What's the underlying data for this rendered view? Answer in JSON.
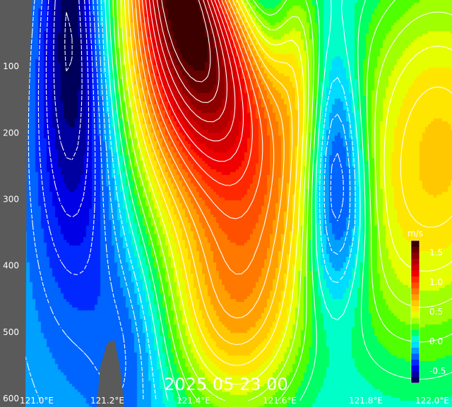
{
  "chart_data": {
    "type": "heatmap",
    "title": "",
    "timestamp": "2025 05 23 00",
    "xlabel": "",
    "ylabel": "",
    "unit": "m/s",
    "x_range": [
      121.0,
      122.0
    ],
    "y_range": [
      0,
      600
    ],
    "y_inverted": true,
    "x_tick_values": [
      121.0,
      121.2,
      121.4,
      121.6,
      121.8,
      122.0
    ],
    "x_tick_labels": [
      "121.0°E",
      "121.2°E",
      "121.4°E",
      "121.6°E",
      "121.8°E",
      "122.0°E"
    ],
    "y_tick_values": [
      100,
      200,
      300,
      400,
      500,
      600
    ],
    "y_tick_labels": [
      "100",
      "200",
      "300",
      "400",
      "500",
      "600"
    ],
    "colorbar": {
      "range": [
        -0.7,
        1.7
      ],
      "step": 0.1,
      "tick_values": [
        1.5,
        1.0,
        0.5,
        0.0,
        -0.5
      ],
      "tick_labels": [
        "1.5",
        "1.0",
        "0.5",
        "0.0",
        "-0.5"
      ],
      "colors": [
        "#00005a",
        "#0000a0",
        "#0000e6",
        "#0028ff",
        "#0064ff",
        "#00a0ff",
        "#00dcff",
        "#00ffc8",
        "#00ff64",
        "#50ff00",
        "#a0ff00",
        "#e6ff00",
        "#ffe600",
        "#ffc800",
        "#ffa000",
        "#ff7800",
        "#ff5000",
        "#ff2800",
        "#f00000",
        "#d20000",
        "#b40000",
        "#8c0000",
        "#640000",
        "#3c0000"
      ]
    },
    "contour_interval": 0.1,
    "negative_contours": "dashed",
    "positive_contours": "solid",
    "features": [
      {
        "x": 121.07,
        "y": 40,
        "value": -0.7
      },
      {
        "x": 121.07,
        "y": 260,
        "value": -0.5
      },
      {
        "x": 121.78,
        "y": 300,
        "value": -0.6
      },
      {
        "x": 121.3,
        "y": 10,
        "value": 1.6
      },
      {
        "x": 121.33,
        "y": 100,
        "value": 1.3
      },
      {
        "x": 121.9,
        "y": 250,
        "value": 0.7
      },
      {
        "x": 121.17,
        "y": 550,
        "value": 0.0
      },
      {
        "x": 121.45,
        "y": 450,
        "value": 0.5
      },
      {
        "x": 121.6,
        "y": 90,
        "value": 0.4
      }
    ],
    "land_mask": "grey"
  }
}
